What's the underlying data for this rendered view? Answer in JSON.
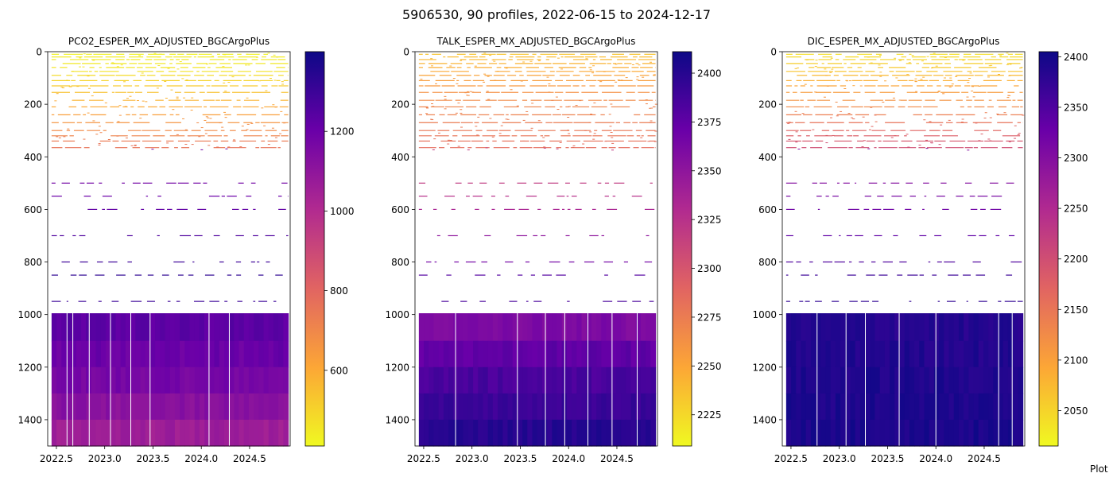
{
  "figure": {
    "suptitle": "5906530, 90 profiles, 2022-06-15 to 2024-12-17",
    "footer_text": "Plot"
  },
  "colormap": {
    "name": "plasma",
    "stops": [
      "#f0f921",
      "#fca636",
      "#e16462",
      "#b12a90",
      "#6a00a8",
      "#0d0887"
    ]
  },
  "chart_data": [
    {
      "type": "heatmap",
      "title": "PCO2_ESPER_MX_ADJUSTED_BGCArgoPlus",
      "xlabel": "",
      "ylabel": "",
      "xlim": [
        2022.41,
        2024.92
      ],
      "ylim": [
        1500,
        0
      ],
      "y_inverted": true,
      "x_ticks": [
        2022.5,
        2023.0,
        2023.5,
        2024.0,
        2024.5
      ],
      "x_tick_labels": [
        "2022.5",
        "2023.0",
        "2023.5",
        "2024.0",
        "2024.5"
      ],
      "y_ticks": [
        0,
        200,
        400,
        600,
        800,
        1000,
        1200,
        1400
      ],
      "y_tick_labels": [
        "0",
        "200",
        "400",
        "600",
        "800",
        "1000",
        "1200",
        "1400"
      ],
      "colorbar": {
        "range": [
          410,
          1400
        ],
        "ticks": [
          600,
          800,
          1000,
          1200
        ],
        "tick_labels": [
          "600",
          "800",
          "1000",
          "1200"
        ]
      },
      "profile_range": [
        2022.45,
        2024.9
      ],
      "gap_x": [
        2022.61,
        2022.67,
        2022.84,
        2023.06,
        2023.27,
        2023.47,
        2024.08,
        2024.29
      ],
      "depth_levels": [
        {
          "depth": 10,
          "value": 430
        },
        {
          "depth": 20,
          "value": 440
        },
        {
          "depth": 30,
          "value": 445
        },
        {
          "depth": 45,
          "value": 450
        },
        {
          "depth": 60,
          "value": 455
        },
        {
          "depth": 75,
          "value": 465
        },
        {
          "depth": 90,
          "value": 480
        },
        {
          "depth": 110,
          "value": 500
        },
        {
          "depth": 130,
          "value": 520
        },
        {
          "depth": 155,
          "value": 545
        },
        {
          "depth": 185,
          "value": 575
        },
        {
          "depth": 210,
          "value": 600
        },
        {
          "depth": 240,
          "value": 630
        },
        {
          "depth": 270,
          "value": 660
        },
        {
          "depth": 300,
          "value": 690
        },
        {
          "depth": 320,
          "value": 710
        },
        {
          "depth": 340,
          "value": 740
        },
        {
          "depth": 365,
          "value": 760
        },
        {
          "depth": 500,
          "value": 1180
        },
        {
          "depth": 550,
          "value": 1200
        },
        {
          "depth": 600,
          "value": 1220
        },
        {
          "depth": 700,
          "value": 1260
        },
        {
          "depth": 800,
          "value": 1300
        },
        {
          "depth": 850,
          "value": 1330
        },
        {
          "depth": 950,
          "value": 1300
        }
      ],
      "deep_layers": [
        {
          "from": 995,
          "to": 1100,
          "value": 1230
        },
        {
          "from": 1100,
          "to": 1200,
          "value": 1200
        },
        {
          "from": 1200,
          "to": 1300,
          "value": 1170
        },
        {
          "from": 1300,
          "to": 1400,
          "value": 1120
        },
        {
          "from": 1400,
          "to": 1500,
          "value": 1060
        }
      ]
    },
    {
      "type": "heatmap",
      "title": "TALK_ESPER_MX_ADJUSTED_BGCArgoPlus",
      "xlabel": "",
      "ylabel": "",
      "xlim": [
        2022.41,
        2024.92
      ],
      "ylim": [
        1500,
        0
      ],
      "y_inverted": true,
      "x_ticks": [
        2022.5,
        2023.0,
        2023.5,
        2024.0,
        2024.5
      ],
      "x_tick_labels": [
        "2022.5",
        "2023.0",
        "2023.5",
        "2024.0",
        "2024.5"
      ],
      "y_ticks": [
        0,
        200,
        400,
        600,
        800,
        1000,
        1200,
        1400
      ],
      "y_tick_labels": [
        "0",
        "200",
        "400",
        "600",
        "800",
        "1000",
        "1200",
        "1400"
      ],
      "colorbar": {
        "range": [
          2209,
          2411
        ],
        "ticks": [
          2225,
          2250,
          2275,
          2300,
          2325,
          2350,
          2375,
          2400
        ],
        "tick_labels": [
          "2225",
          "2250",
          "2275",
          "2300",
          "2325",
          "2350",
          "2375",
          "2400"
        ]
      },
      "profile_range": [
        2022.45,
        2024.9
      ],
      "gap_x": [
        2022.83,
        2023.47,
        2023.76,
        2023.96,
        2024.2,
        2024.45,
        2024.71
      ],
      "depth_levels": [
        {
          "depth": 10,
          "value": 2235
        },
        {
          "depth": 20,
          "value": 2238
        },
        {
          "depth": 30,
          "value": 2240
        },
        {
          "depth": 45,
          "value": 2243
        },
        {
          "depth": 60,
          "value": 2246
        },
        {
          "depth": 75,
          "value": 2248
        },
        {
          "depth": 90,
          "value": 2252
        },
        {
          "depth": 110,
          "value": 2255
        },
        {
          "depth": 130,
          "value": 2258
        },
        {
          "depth": 155,
          "value": 2262
        },
        {
          "depth": 185,
          "value": 2266
        },
        {
          "depth": 210,
          "value": 2270
        },
        {
          "depth": 240,
          "value": 2272
        },
        {
          "depth": 270,
          "value": 2276
        },
        {
          "depth": 300,
          "value": 2278
        },
        {
          "depth": 320,
          "value": 2280
        },
        {
          "depth": 340,
          "value": 2282
        },
        {
          "depth": 365,
          "value": 2285
        },
        {
          "depth": 500,
          "value": 2318
        },
        {
          "depth": 550,
          "value": 2325
        },
        {
          "depth": 600,
          "value": 2335
        },
        {
          "depth": 700,
          "value": 2350
        },
        {
          "depth": 800,
          "value": 2365
        },
        {
          "depth": 850,
          "value": 2380
        },
        {
          "depth": 950,
          "value": 2385
        }
      ],
      "deep_layers": [
        {
          "from": 995,
          "to": 1100,
          "value": 2360
        },
        {
          "from": 1100,
          "to": 1200,
          "value": 2375
        },
        {
          "from": 1200,
          "to": 1300,
          "value": 2385
        },
        {
          "from": 1300,
          "to": 1400,
          "value": 2392
        },
        {
          "from": 1400,
          "to": 1500,
          "value": 2400
        }
      ]
    },
    {
      "type": "heatmap",
      "title": "DIC_ESPER_MX_ADJUSTED_BGCArgoPlus",
      "xlabel": "",
      "ylabel": "",
      "xlim": [
        2022.41,
        2024.92
      ],
      "ylim": [
        1500,
        0
      ],
      "y_inverted": true,
      "x_ticks": [
        2022.5,
        2023.0,
        2023.5,
        2024.0,
        2024.5
      ],
      "x_tick_labels": [
        "2022.5",
        "2023.0",
        "2023.5",
        "2024.0",
        "2024.5"
      ],
      "y_ticks": [
        0,
        200,
        400,
        600,
        800,
        1000,
        1200,
        1400
      ],
      "y_tick_labels": [
        "0",
        "200",
        "400",
        "600",
        "800",
        "1000",
        "1200",
        "1400"
      ],
      "colorbar": {
        "range": [
          2015,
          2405
        ],
        "ticks": [
          2050,
          2100,
          2150,
          2200,
          2250,
          2300,
          2350,
          2400
        ],
        "tick_labels": [
          "2050",
          "2100",
          "2150",
          "2200",
          "2250",
          "2300",
          "2350",
          "2400"
        ]
      },
      "profile_range": [
        2022.45,
        2024.9
      ],
      "gap_x": [
        2022.77,
        2023.07,
        2023.27,
        2023.62,
        2024.0,
        2024.65,
        2024.79
      ],
      "depth_levels": [
        {
          "depth": 10,
          "value": 2040
        },
        {
          "depth": 20,
          "value": 2045
        },
        {
          "depth": 30,
          "value": 2050
        },
        {
          "depth": 45,
          "value": 2055
        },
        {
          "depth": 60,
          "value": 2060
        },
        {
          "depth": 75,
          "value": 2065
        },
        {
          "depth": 90,
          "value": 2075
        },
        {
          "depth": 110,
          "value": 2085
        },
        {
          "depth": 130,
          "value": 2095
        },
        {
          "depth": 155,
          "value": 2105
        },
        {
          "depth": 185,
          "value": 2115
        },
        {
          "depth": 210,
          "value": 2125
        },
        {
          "depth": 240,
          "value": 2140
        },
        {
          "depth": 270,
          "value": 2155
        },
        {
          "depth": 300,
          "value": 2170
        },
        {
          "depth": 320,
          "value": 2180
        },
        {
          "depth": 340,
          "value": 2190
        },
        {
          "depth": 365,
          "value": 2200
        },
        {
          "depth": 500,
          "value": 2300
        },
        {
          "depth": 550,
          "value": 2310
        },
        {
          "depth": 600,
          "value": 2320
        },
        {
          "depth": 700,
          "value": 2335
        },
        {
          "depth": 800,
          "value": 2350
        },
        {
          "depth": 850,
          "value": 2365
        },
        {
          "depth": 950,
          "value": 2375
        }
      ],
      "deep_layers": [
        {
          "from": 995,
          "to": 1100,
          "value": 2385
        },
        {
          "from": 1100,
          "to": 1200,
          "value": 2388
        },
        {
          "from": 1200,
          "to": 1300,
          "value": 2390
        },
        {
          "from": 1300,
          "to": 1400,
          "value": 2392
        },
        {
          "from": 1400,
          "to": 1500,
          "value": 2394
        }
      ]
    }
  ]
}
